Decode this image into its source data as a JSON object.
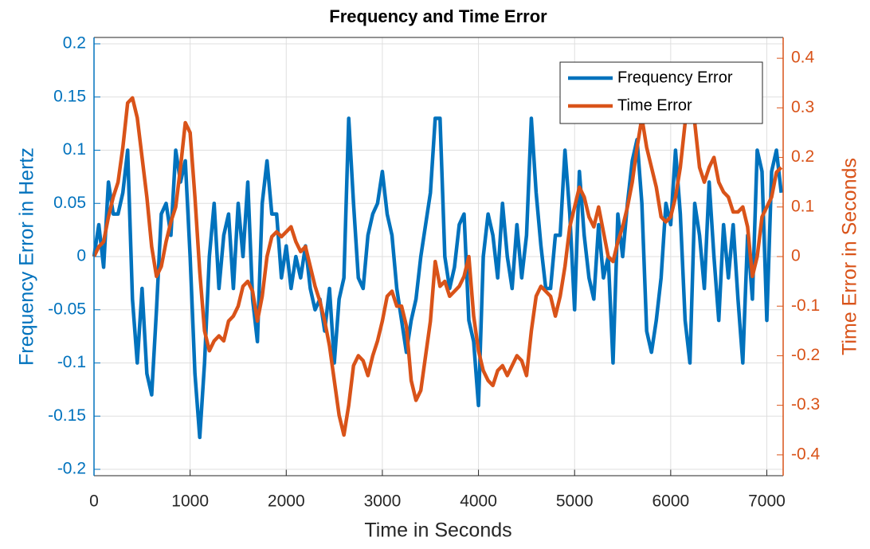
{
  "chart_data": {
    "type": "line",
    "title": "Frequency and Time Error",
    "x_label": "Time in Seconds",
    "y_label": "Frequency Error in Hertz",
    "y2_label": "Time Error in Seconds",
    "x": [
      0,
      50,
      100,
      150,
      200,
      250,
      300,
      350,
      400,
      450,
      500,
      550,
      600,
      650,
      700,
      750,
      800,
      850,
      900,
      950,
      1000,
      1050,
      1100,
      1150,
      1200,
      1250,
      1300,
      1350,
      1400,
      1450,
      1500,
      1550,
      1600,
      1650,
      1700,
      1750,
      1800,
      1850,
      1900,
      1950,
      2000,
      2050,
      2100,
      2150,
      2200,
      2250,
      2300,
      2350,
      2400,
      2450,
      2500,
      2550,
      2600,
      2650,
      2700,
      2750,
      2800,
      2850,
      2900,
      2950,
      3000,
      3050,
      3100,
      3150,
      3200,
      3250,
      3300,
      3350,
      3400,
      3450,
      3500,
      3550,
      3600,
      3650,
      3700,
      3750,
      3800,
      3850,
      3900,
      3950,
      4000,
      4050,
      4100,
      4150,
      4200,
      4250,
      4300,
      4350,
      4400,
      4450,
      4500,
      4550,
      4600,
      4650,
      4700,
      4750,
      4800,
      4850,
      4900,
      4950,
      5000,
      5050,
      5100,
      5150,
      5200,
      5250,
      5300,
      5350,
      5400,
      5450,
      5500,
      5550,
      5600,
      5650,
      5700,
      5750,
      5800,
      5850,
      5900,
      5950,
      6000,
      6050,
      6100,
      6150,
      6200,
      6250,
      6300,
      6350,
      6400,
      6450,
      6500,
      6550,
      6600,
      6650,
      6700,
      6750,
      6800,
      6850,
      6900,
      6950,
      7000,
      7050,
      7100,
      7150
    ],
    "series": [
      {
        "name": "Frequency Error",
        "color": "#0072BD",
        "axis": "y",
        "values": [
          0.0,
          0.03,
          -0.01,
          0.07,
          0.04,
          0.04,
          0.06,
          0.1,
          -0.04,
          -0.1,
          -0.03,
          -0.11,
          -0.13,
          -0.05,
          0.04,
          0.05,
          0.02,
          0.1,
          0.07,
          0.09,
          0.0,
          -0.11,
          -0.17,
          -0.1,
          0.0,
          0.05,
          -0.03,
          0.02,
          0.04,
          -0.03,
          0.05,
          0.0,
          0.07,
          -0.04,
          -0.08,
          0.05,
          0.09,
          0.04,
          0.04,
          -0.02,
          0.01,
          -0.03,
          0.0,
          -0.02,
          0.01,
          -0.03,
          -0.05,
          -0.04,
          -0.07,
          -0.03,
          -0.1,
          -0.04,
          -0.02,
          0.13,
          0.05,
          -0.02,
          -0.03,
          0.02,
          0.04,
          0.05,
          0.08,
          0.04,
          0.02,
          -0.03,
          -0.06,
          -0.09,
          -0.06,
          -0.04,
          0.0,
          0.03,
          0.06,
          0.13,
          0.13,
          0.0,
          -0.03,
          -0.01,
          0.03,
          0.04,
          -0.06,
          -0.08,
          -0.14,
          0.0,
          0.04,
          0.02,
          -0.02,
          0.05,
          0.0,
          -0.03,
          0.03,
          -0.02,
          0.02,
          0.13,
          0.06,
          0.01,
          -0.03,
          -0.03,
          0.02,
          0.02,
          0.1,
          0.04,
          -0.05,
          0.08,
          0.02,
          -0.02,
          -0.04,
          0.03,
          -0.02,
          0.0,
          -0.1,
          0.04,
          0.0,
          0.05,
          0.09,
          0.11,
          0.05,
          -0.07,
          -0.09,
          -0.06,
          -0.02,
          0.05,
          0.03,
          0.1,
          0.04,
          -0.06,
          -0.1,
          0.05,
          0.02,
          -0.03,
          0.07,
          0.0,
          -0.06,
          0.03,
          -0.02,
          0.03,
          -0.04,
          -0.1,
          0.02,
          -0.04,
          0.1,
          0.08,
          -0.06,
          0.08,
          0.1,
          0.06
        ]
      },
      {
        "name": "Time Error",
        "color": "#D95319",
        "axis": "y2",
        "values": [
          0.0,
          0.02,
          0.03,
          0.08,
          0.12,
          0.15,
          0.22,
          0.31,
          0.32,
          0.28,
          0.2,
          0.12,
          0.02,
          -0.04,
          -0.02,
          0.03,
          0.07,
          0.1,
          0.18,
          0.27,
          0.25,
          0.12,
          -0.03,
          -0.15,
          -0.19,
          -0.17,
          -0.16,
          -0.17,
          -0.13,
          -0.12,
          -0.1,
          -0.06,
          -0.05,
          -0.07,
          -0.13,
          -0.08,
          0.0,
          0.04,
          0.05,
          0.04,
          0.05,
          0.06,
          0.03,
          0.01,
          0.02,
          -0.02,
          -0.06,
          -0.09,
          -0.13,
          -0.18,
          -0.25,
          -0.32,
          -0.36,
          -0.3,
          -0.22,
          -0.2,
          -0.21,
          -0.24,
          -0.2,
          -0.17,
          -0.13,
          -0.08,
          -0.07,
          -0.1,
          -0.1,
          -0.14,
          -0.25,
          -0.29,
          -0.27,
          -0.2,
          -0.13,
          -0.01,
          -0.06,
          -0.05,
          -0.08,
          -0.07,
          -0.06,
          -0.04,
          0.0,
          -0.12,
          -0.19,
          -0.23,
          -0.25,
          -0.26,
          -0.23,
          -0.22,
          -0.24,
          -0.22,
          -0.2,
          -0.21,
          -0.24,
          -0.15,
          -0.08,
          -0.06,
          -0.07,
          -0.08,
          -0.12,
          -0.08,
          -0.02,
          0.06,
          0.1,
          0.14,
          0.12,
          0.08,
          0.06,
          0.1,
          0.05,
          0.0,
          -0.01,
          0.03,
          0.06,
          0.1,
          0.15,
          0.22,
          0.28,
          0.22,
          0.18,
          0.14,
          0.08,
          0.07,
          0.08,
          0.12,
          0.18,
          0.27,
          0.3,
          0.27,
          0.18,
          0.15,
          0.18,
          0.2,
          0.15,
          0.13,
          0.12,
          0.09,
          0.09,
          0.1,
          0.06,
          -0.04,
          0.0,
          0.08,
          0.1,
          0.12,
          0.17,
          0.18
        ]
      }
    ],
    "xlim": [
      0,
      7170
    ],
    "xticks": [
      0,
      1000,
      2000,
      3000,
      4000,
      5000,
      6000,
      7000
    ],
    "ylim": [
      -0.206,
      0.206
    ],
    "yticks": [
      -0.2,
      -0.15,
      -0.1,
      -0.05,
      0,
      0.05,
      0.1,
      0.15,
      0.2
    ],
    "y2lim": [
      -0.442,
      0.442
    ],
    "y2ticks": [
      -0.4,
      -0.3,
      -0.2,
      -0.1,
      0,
      0.1,
      0.2,
      0.3,
      0.4
    ],
    "grid": true,
    "legend": "northeast"
  }
}
